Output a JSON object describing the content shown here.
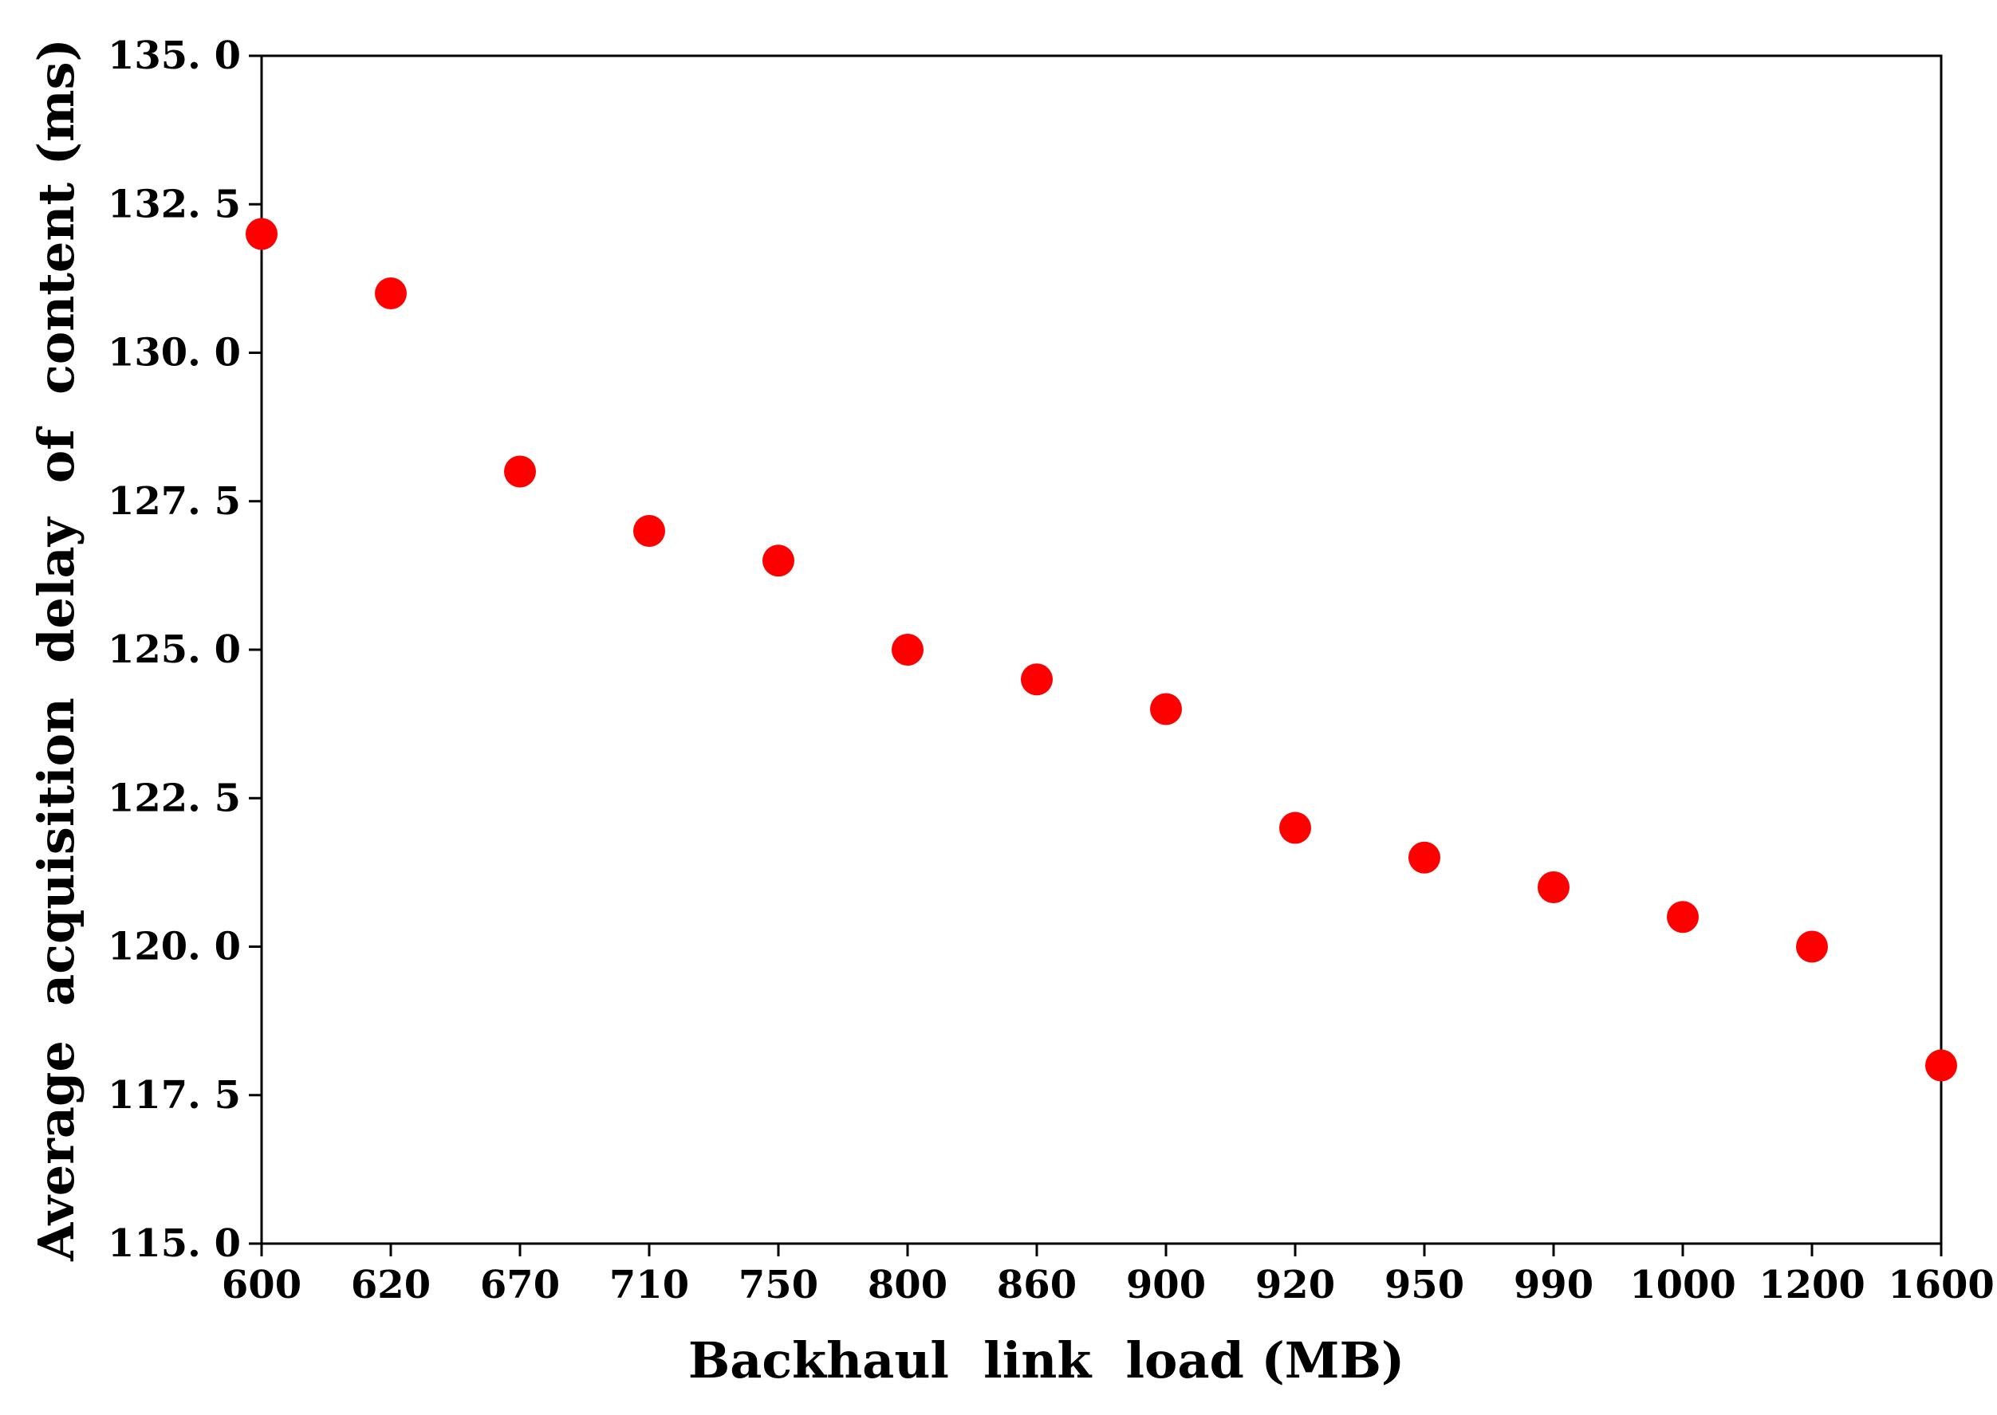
{
  "chart_data": {
    "type": "scatter",
    "title": "",
    "xlabel": "Backhaul  link  load (MB)",
    "ylabel": "Average  acquisition  delay  of  content (ms)",
    "categories": [
      "600",
      "620",
      "670",
      "710",
      "750",
      "800",
      "860",
      "900",
      "920",
      "950",
      "990",
      "1000",
      "1200",
      "1600"
    ],
    "values": [
      132.0,
      131.0,
      128.0,
      127.0,
      126.5,
      125.0,
      124.5,
      124.0,
      122.0,
      121.5,
      121.0,
      120.5,
      120.0,
      118.0
    ],
    "ylim": [
      115.0,
      135.0
    ],
    "yticks": [
      "115. 0",
      "117. 5",
      "120. 0",
      "122. 5",
      "125. 0",
      "127. 5",
      "130. 0",
      "132. 5",
      "135. 0"
    ],
    "grid": false,
    "marker_color": "#ff0000"
  }
}
